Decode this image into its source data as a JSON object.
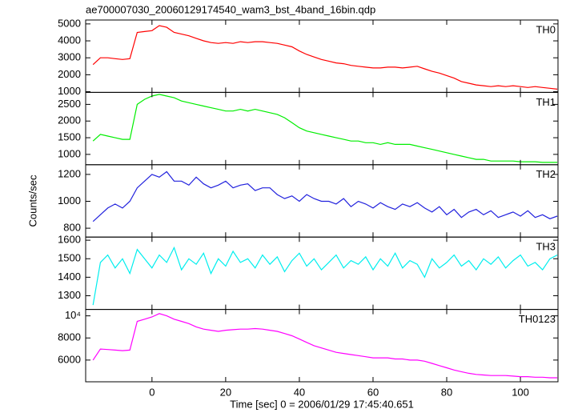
{
  "chart_data": {
    "type": "line",
    "title": "ae700007030_20060129174540_wam3_bst_4band_16bin.qdp",
    "x_label": "Time [sec] 0 = 2006/01/29 17:45:40.651",
    "y_label": "Counts/sec",
    "xlim": [
      -18,
      110.2
    ],
    "xticks": [
      0,
      20,
      40,
      60,
      80,
      100
    ],
    "x": [
      -16,
      -14,
      -12,
      -10,
      -8,
      -6,
      -4,
      -2,
      0,
      2,
      4,
      6,
      8,
      10,
      12,
      14,
      16,
      18,
      20,
      22,
      24,
      26,
      28,
      30,
      32,
      34,
      36,
      38,
      40,
      42,
      44,
      46,
      48,
      50,
      52,
      54,
      56,
      58,
      60,
      62,
      64,
      66,
      68,
      70,
      72,
      74,
      76,
      78,
      80,
      82,
      84,
      86,
      88,
      90,
      92,
      94,
      96,
      98,
      100,
      102,
      104,
      106,
      108,
      110
    ],
    "series": [
      {
        "name": "TH0",
        "color": "#ff0000",
        "ylim": [
          960,
          5230
        ],
        "yticks": [
          1000,
          2000,
          3000,
          4000,
          5000
        ],
        "values": [
          2600,
          3000,
          3000,
          2950,
          2900,
          2950,
          4500,
          4550,
          4600,
          4900,
          4800,
          4500,
          4400,
          4300,
          4150,
          4000,
          3900,
          3850,
          3900,
          3850,
          3950,
          3900,
          3950,
          3950,
          3900,
          3850,
          3750,
          3650,
          3400,
          3200,
          3050,
          2900,
          2800,
          2700,
          2650,
          2550,
          2500,
          2450,
          2400,
          2400,
          2450,
          2450,
          2400,
          2450,
          2500,
          2350,
          2200,
          2100,
          1950,
          1800,
          1600,
          1500,
          1400,
          1350,
          1300,
          1350,
          1300,
          1350,
          1300,
          1250,
          1300,
          1250,
          1200,
          1150
        ]
      },
      {
        "name": "TH1",
        "color": "#00ee00",
        "ylim": [
          690,
          2860
        ],
        "yticks": [
          1000,
          1500,
          2000,
          2500
        ],
        "values": [
          1400,
          1600,
          1550,
          1500,
          1450,
          1450,
          2500,
          2650,
          2750,
          2800,
          2750,
          2700,
          2600,
          2550,
          2500,
          2450,
          2400,
          2350,
          2300,
          2300,
          2350,
          2300,
          2350,
          2300,
          2250,
          2200,
          2100,
          1950,
          1800,
          1700,
          1650,
          1600,
          1550,
          1500,
          1450,
          1400,
          1400,
          1350,
          1350,
          1300,
          1350,
          1300,
          1300,
          1300,
          1250,
          1200,
          1150,
          1100,
          1050,
          1000,
          950,
          900,
          850,
          850,
          800,
          800,
          800,
          800,
          780,
          780,
          780,
          760,
          760,
          760
        ]
      },
      {
        "name": "TH2",
        "color": "#2222dd",
        "ylim": [
          734,
          1272
        ],
        "yticks": [
          800,
          1000,
          1200
        ],
        "values": [
          850,
          900,
          950,
          980,
          950,
          1000,
          1100,
          1150,
          1200,
          1180,
          1220,
          1150,
          1150,
          1120,
          1180,
          1130,
          1100,
          1120,
          1150,
          1100,
          1120,
          1130,
          1080,
          1100,
          1100,
          1050,
          1020,
          1040,
          1000,
          1050,
          1020,
          1000,
          1000,
          980,
          1020,
          960,
          1000,
          980,
          950,
          990,
          960,
          940,
          980,
          960,
          990,
          950,
          920,
          960,
          900,
          940,
          880,
          920,
          940,
          900,
          930,
          880,
          900,
          920,
          890,
          930,
          880,
          900,
          870,
          890
        ]
      },
      {
        "name": "TH3",
        "color": "#00eeee",
        "ylim": [
          1226,
          1617
        ],
        "yticks": [
          1300,
          1400,
          1500,
          1600
        ],
        "values": [
          1250,
          1480,
          1520,
          1450,
          1500,
          1420,
          1550,
          1500,
          1450,
          1520,
          1480,
          1560,
          1440,
          1500,
          1470,
          1530,
          1420,
          1500,
          1460,
          1540,
          1480,
          1500,
          1450,
          1520,
          1470,
          1510,
          1430,
          1490,
          1530,
          1460,
          1500,
          1440,
          1480,
          1520,
          1450,
          1490,
          1470,
          1510,
          1440,
          1500,
          1460,
          1530,
          1450,
          1490,
          1470,
          1400,
          1500,
          1450,
          1480,
          1520,
          1460,
          1490,
          1440,
          1500,
          1470,
          1510,
          1450,
          1490,
          1520,
          1460,
          1480,
          1440,
          1500,
          1520
        ]
      },
      {
        "name": "TH0123",
        "color": "#ff00ff",
        "ylim": [
          4036,
          10580
        ],
        "yticks": [
          6000,
          8000,
          {
            "value": 10000,
            "label": "10⁴"
          }
        ],
        "values": [
          6000,
          7000,
          6950,
          6900,
          6850,
          6900,
          9500,
          9700,
          9900,
          10200,
          10000,
          9700,
          9500,
          9300,
          9000,
          8800,
          8700,
          8600,
          8700,
          8750,
          8800,
          8800,
          8850,
          8800,
          8700,
          8600,
          8400,
          8200,
          7900,
          7600,
          7300,
          7100,
          6900,
          6700,
          6600,
          6500,
          6400,
          6300,
          6200,
          6200,
          6200,
          6100,
          6100,
          6000,
          6000,
          5900,
          5700,
          5500,
          5300,
          5100,
          4950,
          4800,
          4700,
          4650,
          4600,
          4600,
          4600,
          4550,
          4500,
          4500,
          4450,
          4450,
          4400,
          4400
        ]
      }
    ]
  }
}
